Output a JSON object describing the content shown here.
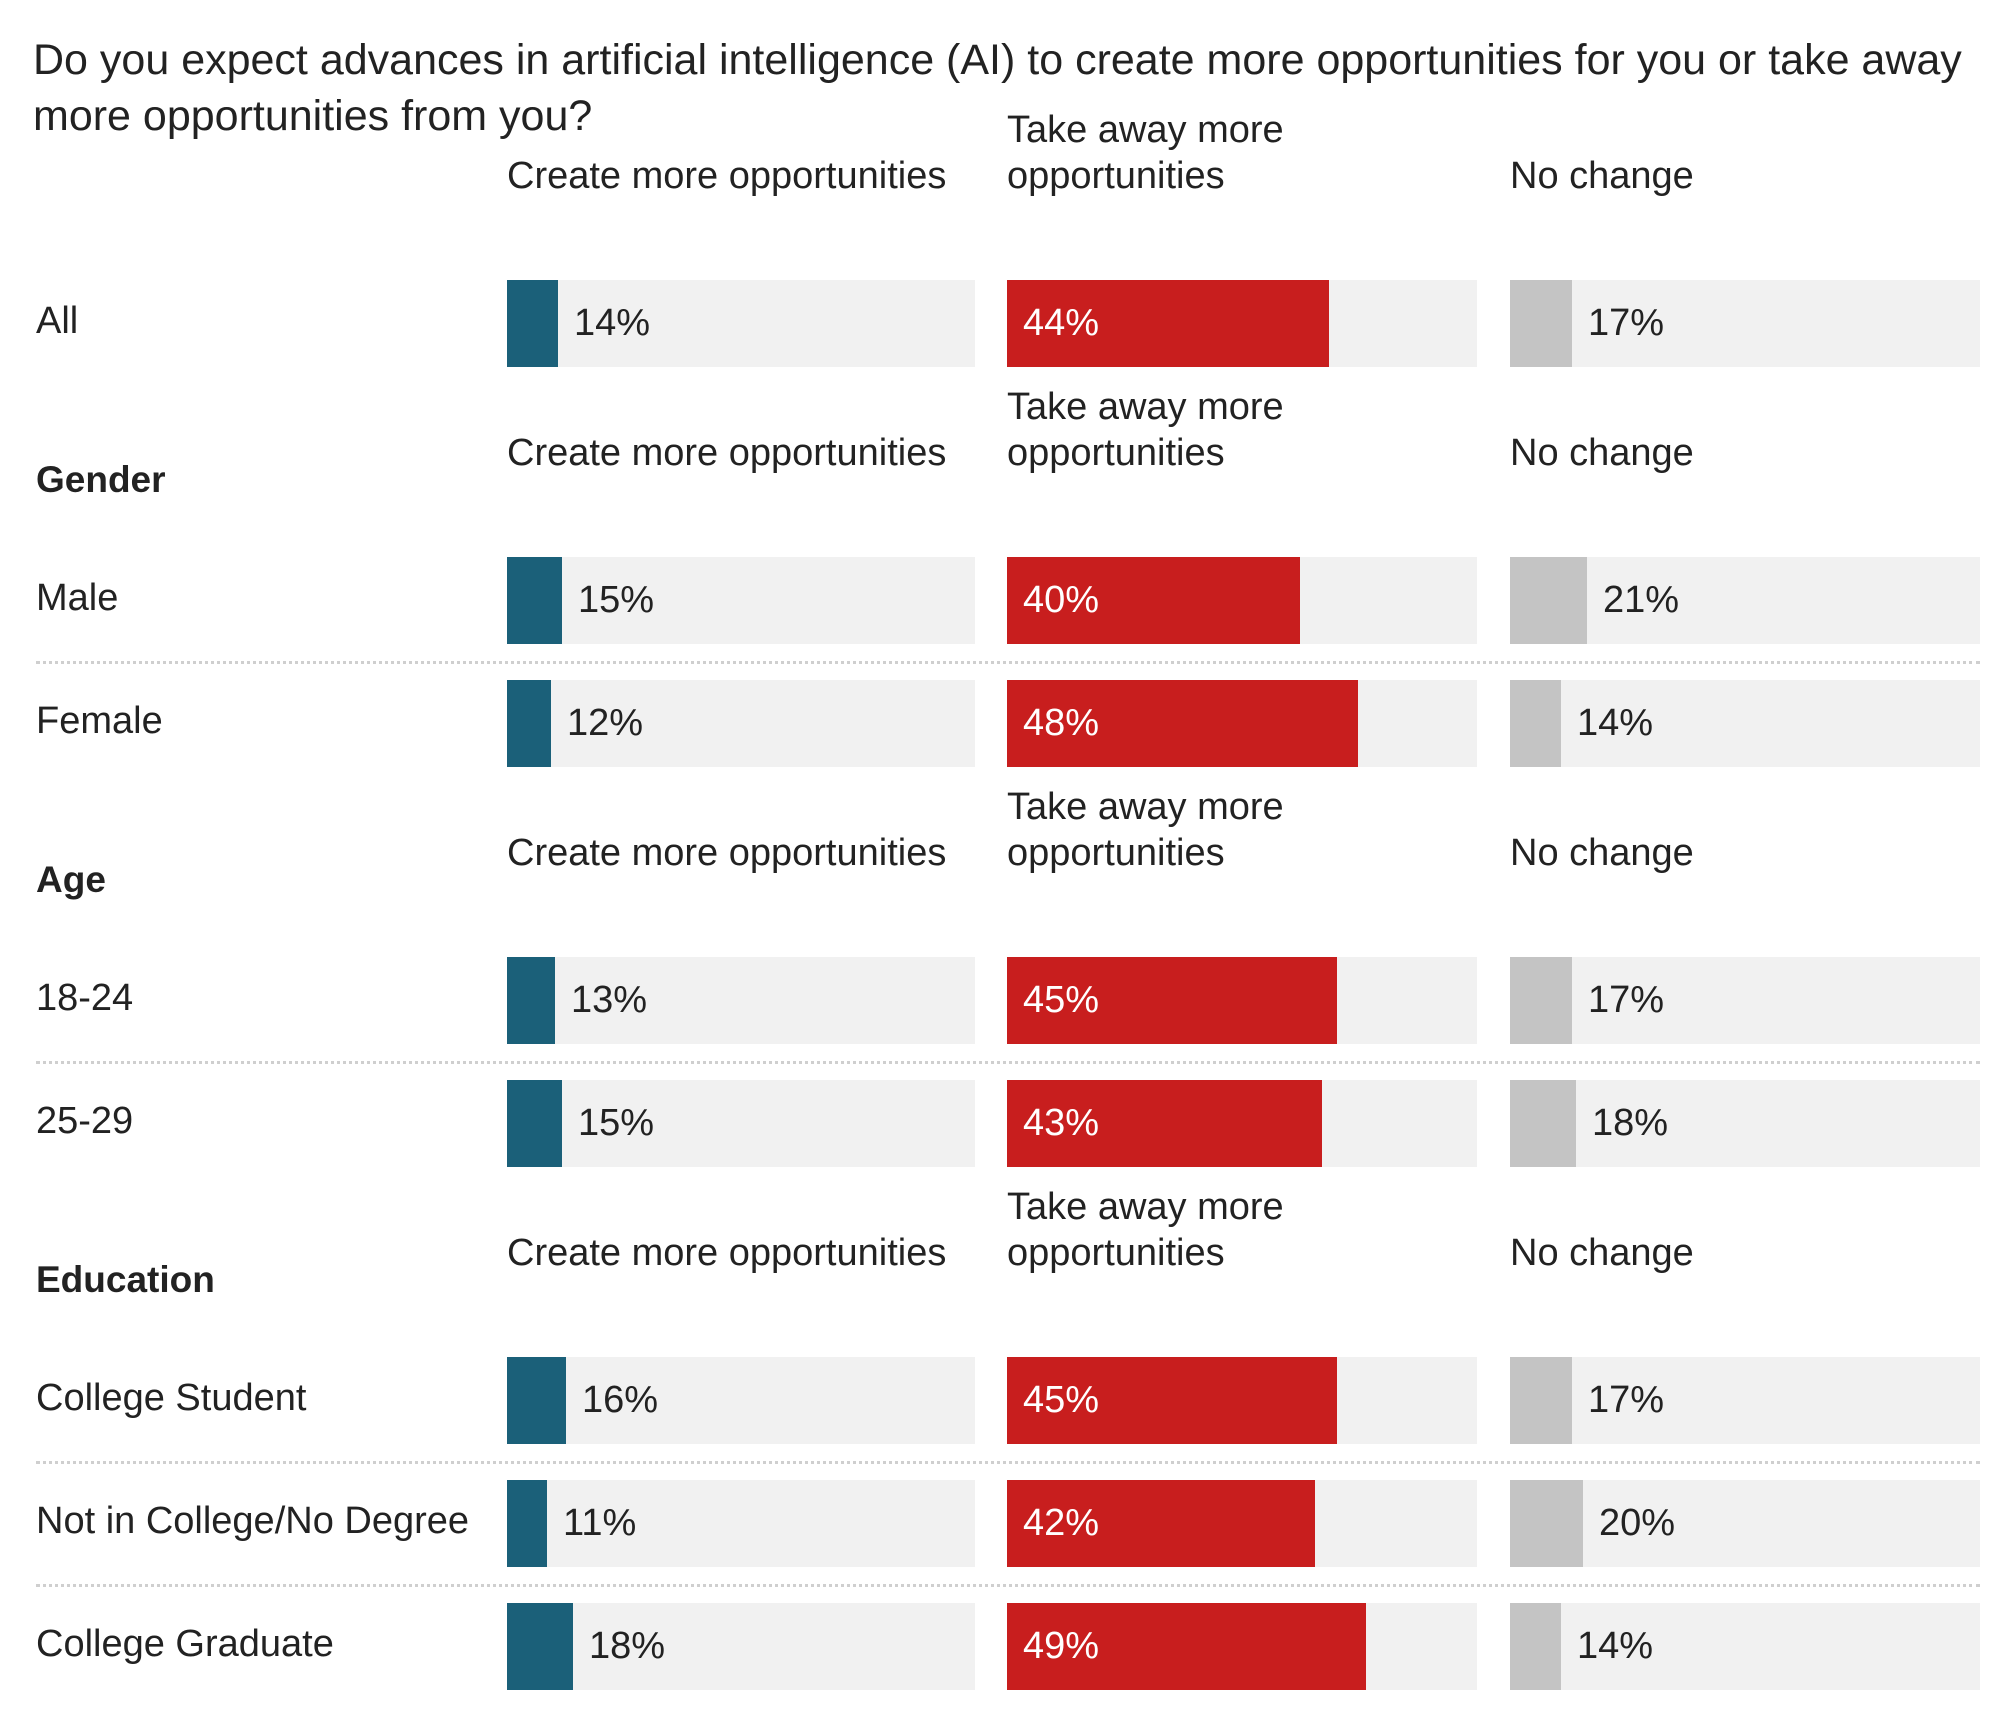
{
  "chart_data": {
    "type": "bar",
    "title": "Do you expect advances in artificial intelligence (AI) to create more opportunities for you or take away more opportunities from you?",
    "series_names": [
      "Create more opportunities",
      "Take away more opportunities",
      "No change"
    ],
    "header_labels": [
      "Create more opportunities",
      "Take away more\nopportunities",
      "No change"
    ],
    "colors": [
      "#1b6079",
      "#c81e1e",
      "#c4c4c4"
    ],
    "text_colors_inside": [
      "#ffffff",
      "#ffffff",
      "#333333"
    ],
    "text_color_outside": "#222222",
    "track_color": "#f1f1f1",
    "scale_max": 100,
    "groups": [
      {
        "name": "",
        "rows": [
          {
            "label": "All",
            "values": [
              14,
              44,
              17
            ],
            "labels": [
              "14%",
              "44%",
              "17%"
            ]
          }
        ]
      },
      {
        "name": "Gender",
        "rows": [
          {
            "label": "Male",
            "values": [
              15,
              40,
              21
            ],
            "labels": [
              "15%",
              "40%",
              "21%"
            ]
          },
          {
            "label": "Female",
            "values": [
              12,
              48,
              14
            ],
            "labels": [
              "12%",
              "48%",
              "14%"
            ]
          }
        ]
      },
      {
        "name": "Age",
        "rows": [
          {
            "label": "18-24",
            "values": [
              13,
              45,
              17
            ],
            "labels": [
              "13%",
              "45%",
              "17%"
            ]
          },
          {
            "label": "25-29",
            "values": [
              15,
              43,
              18
            ],
            "labels": [
              "15%",
              "43%",
              "18%"
            ]
          }
        ]
      },
      {
        "name": "Education",
        "rows": [
          {
            "label": "College Student",
            "values": [
              16,
              45,
              17
            ],
            "labels": [
              "16%",
              "45%",
              "17%"
            ]
          },
          {
            "label": "Not in College/No Degree",
            "values": [
              11,
              42,
              20
            ],
            "labels": [
              "11%",
              "42%",
              "20%"
            ]
          },
          {
            "label": "College Graduate",
            "values": [
              18,
              49,
              14
            ],
            "labels": [
              "18%",
              "49%",
              "14%"
            ]
          }
        ]
      }
    ]
  }
}
